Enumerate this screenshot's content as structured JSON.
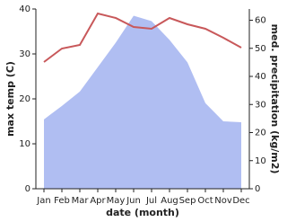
{
  "chart_data": {
    "type": "line",
    "x_label": "date (month)",
    "y_label": "max temp (C)",
    "y2_label": "med. precipitation (kg/m2)",
    "categories": [
      "Jan",
      "Feb",
      "Mar",
      "Apr",
      "May",
      "Jun",
      "Jul",
      "Aug",
      "Sep",
      "Oct",
      "Nov",
      "Dec"
    ],
    "series": [
      {
        "name": "max temp",
        "color": "#c8585a",
        "kind": "line",
        "values": [
          28.2,
          31.2,
          32,
          39,
          38,
          36,
          35.6,
          38,
          36.6,
          35.6,
          33.6,
          31.4
        ]
      },
      {
        "name": "med. precipitation",
        "color": "#b0bef2",
        "kind": "area",
        "axis": "y2",
        "values": [
          24.7,
          29.5,
          34.6,
          43.3,
          52,
          61.6,
          59.7,
          53,
          45,
          30.5,
          24,
          23.7
        ]
      }
    ],
    "ylim": [
      0,
      40
    ],
    "yticks": [
      0,
      10,
      20,
      30,
      40
    ],
    "y2lim": [
      0,
      64
    ],
    "y2ticks": [
      0,
      10,
      20,
      30,
      40,
      50,
      60
    ]
  }
}
